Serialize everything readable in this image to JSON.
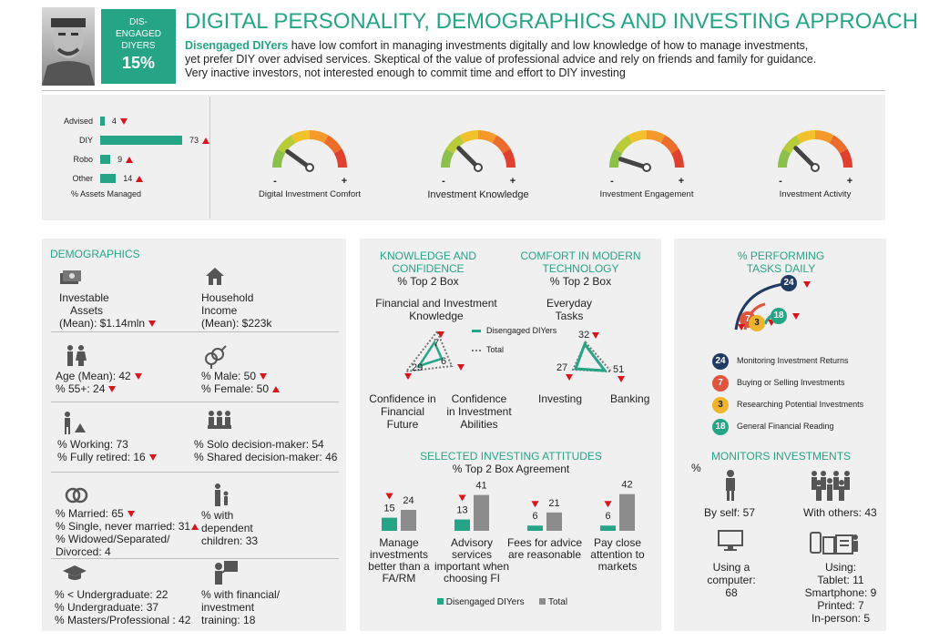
{
  "header": {
    "badge_line1": "DIS-",
    "badge_line2": "ENGAGED",
    "badge_line3": "DIYERS",
    "badge_pct": "15%",
    "title": "DIGITAL PERSONALITY, DEMOGRAPHICS AND INVESTING APPROACH",
    "desc_highlight": "Disengaged DIYers",
    "desc_line1": " have low comfort in managing investments digitally and low knowledge of how to manage investments,",
    "desc_line2": "yet prefer DIY over advised services. Skeptical of the value of professional advice and rely on friends and family for guidance.",
    "desc_line3": "Very inactive investors,  not interested enough to commit time and effort to DIY investing"
  },
  "assets": {
    "rows": [
      {
        "label": "Advised",
        "value": 4,
        "arrow": "down"
      },
      {
        "label": "DIY",
        "value": 73,
        "arrow": "up"
      },
      {
        "label": "Robo",
        "value": 9,
        "arrow": "up"
      },
      {
        "label": "Other",
        "value": 14,
        "arrow": "up"
      }
    ],
    "caption": "% Assets Managed"
  },
  "gauges": [
    {
      "label": "Digital Investment Comfort",
      "level": 0.2
    },
    {
      "label": "Investment Knowledge",
      "level": 0.25
    },
    {
      "label": "Investment Engagement",
      "level": 0.1
    },
    {
      "label": "Investment Activity",
      "level": 0.25
    }
  ],
  "gauge_minus": "-",
  "gauge_plus": "+",
  "demographics": {
    "title": "DEMOGRAPHICS",
    "assets_l1": "Investable",
    "assets_l2": "Assets",
    "assets_l3": "(Mean): $1.14mln",
    "income_l1": "Household",
    "income_l2": "Income",
    "income_l3": "(Mean): $223k",
    "age_mean": "Age (Mean): 42",
    "age_55": "% 55+: 24",
    "male": "% Male: 50",
    "female": "% Female: 50",
    "working": "% Working: 73",
    "retired": "% Fully retired: 16",
    "solo": "% Solo decision-maker: 54",
    "shared": "% Shared decision-maker: 46",
    "married": "% Married: 65",
    "single": "% Single, never married: 31",
    "widowed_l1": "% Widowed/Separated/",
    "widowed_l2": "Divorced: 4",
    "dep_l1": "% with",
    "dep_l2": "dependent",
    "dep_l3": "children: 33",
    "under": "% < Undergraduate: 22",
    "undergrad": "% Undergraduate: 37",
    "masters": "% Masters/Professional : 42",
    "fin_l1": "% with financial/",
    "fin_l2": "investment",
    "fin_l3": "training: 18"
  },
  "knowledge": {
    "title_l1": "KNOWLEDGE AND",
    "title_l2": "CONFIDENCE",
    "sub": "% Top 2 Box",
    "top_label_l1": "Financial and Investment",
    "top_label_l2": "Knowledge",
    "legend_seg": "Disengaged DIYers",
    "legend_total": "Total",
    "v_top": "7",
    "v_left": "29",
    "v_right": "6",
    "bl_l1": "Confidence in",
    "bl_l2": "Financial",
    "bl_l3": "Future",
    "br_l1": "Confidence",
    "br_l2": "in Investment",
    "br_l3": "Abilities"
  },
  "comfort": {
    "title_l1": "COMFORT IN MODERN",
    "title_l2": "TECHNOLOGY",
    "sub": "% Top 2 Box",
    "top_label_l1": "Everyday",
    "top_label_l2": "Tasks",
    "v_top": "32",
    "v_left": "27",
    "v_right": "51",
    "left_label": "Investing",
    "right_label": "Banking"
  },
  "attitudes": {
    "title": "SELECTED INVESTING ATTITUDES",
    "sub": "% Top 2 Box Agreement",
    "legend_seg": "Disengaged DIYers",
    "legend_total": "Total",
    "colors": {
      "seg": "#26a586",
      "total": "#8c8c8c",
      "down": "#d9141b"
    }
  },
  "chart_data": {
    "type": "bar",
    "categories": [
      "Manage investments better than a FA/RM",
      "Advisory services important when choosing FI",
      "Fees for advice are reasonable",
      "Pay close attention to markets"
    ],
    "series": [
      {
        "name": "Disengaged DIYers",
        "values": [
          15,
          13,
          6,
          6
        ]
      },
      {
        "name": "Total",
        "values": [
          24,
          41,
          21,
          42
        ]
      }
    ],
    "title": "SELECTED INVESTING ATTITUDES",
    "ylim": [
      0,
      50
    ]
  },
  "cat_lines": [
    [
      "Manage",
      "investments",
      "better than a",
      "FA/RM"
    ],
    [
      "Advisory",
      "services",
      "important when",
      "choosing FI"
    ],
    [
      "Fees for advice",
      "are reasonable"
    ],
    [
      "Pay close",
      "attention to",
      "markets"
    ]
  ],
  "tasks": {
    "title_l1": "% PERFORMING",
    "title_l2": "TASKS DAILY",
    "items": [
      {
        "value": "24",
        "label": "Monitoring Investment Returns",
        "color": "#1f3a63"
      },
      {
        "value": "7",
        "label": "Buying or Selling Investments",
        "color": "#e0533c"
      },
      {
        "value": "3",
        "label": "Researching Potential Investments",
        "color": "#f0b32c"
      },
      {
        "value": "18",
        "label": "General Financial Reading",
        "color": "#26a586"
      }
    ]
  },
  "monitors": {
    "title": "MONITORS INVESTMENTS",
    "pct": "%",
    "self": "By self: 57",
    "others": "With others: 43",
    "computer_l1": "Using a",
    "computer_l2": "computer:",
    "computer_l3": "68",
    "using": "Using:",
    "tablet": "Tablet: 11",
    "smartphone": "Smartphone: 9",
    "printed": "Printed: 7",
    "inperson": "In-person: 5"
  }
}
